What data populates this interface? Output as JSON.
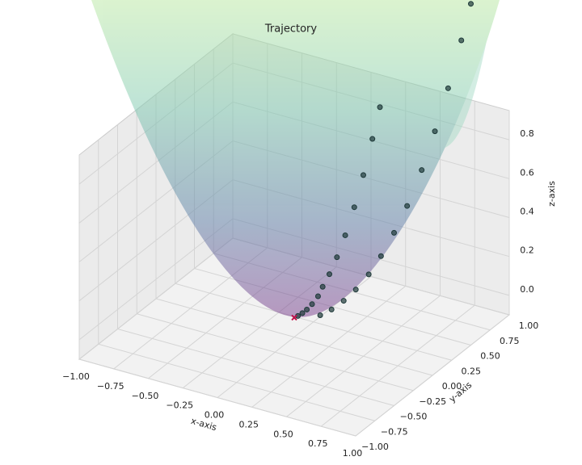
{
  "chart_data": {
    "type": "scatter3d",
    "title": "Trajectory",
    "x_label": "x-axis",
    "y_label": "y-axis",
    "z_label": "z-axis",
    "xlim": [
      -1,
      1
    ],
    "ylim": [
      -1,
      1
    ],
    "zlim": [
      -0.1,
      0.95
    ],
    "xticks": [
      {
        "value": -1,
        "label": "−1.00"
      },
      {
        "value": -0.75,
        "label": "−0.75"
      },
      {
        "value": -0.5,
        "label": "−0.50"
      },
      {
        "value": -0.25,
        "label": "−0.25"
      },
      {
        "value": 0,
        "label": "0.00"
      },
      {
        "value": 0.25,
        "label": "0.25"
      },
      {
        "value": 0.5,
        "label": "0.50"
      },
      {
        "value": 0.75,
        "label": "0.75"
      },
      {
        "value": 1,
        "label": "1.00"
      }
    ],
    "yticks": [
      {
        "value": -1,
        "label": "−1.00"
      },
      {
        "value": -0.75,
        "label": "−0.75"
      },
      {
        "value": -0.5,
        "label": "−0.50"
      },
      {
        "value": -0.25,
        "label": "−0.25"
      },
      {
        "value": 0,
        "label": "0.00"
      },
      {
        "value": 0.25,
        "label": "0.25"
      },
      {
        "value": 0.5,
        "label": "0.50"
      },
      {
        "value": 0.75,
        "label": "0.75"
      },
      {
        "value": 1,
        "label": "1.00"
      }
    ],
    "zticks": [
      {
        "value": 0,
        "label": "0.0"
      },
      0.2,
      0.4,
      0.6,
      0.8
    ],
    "grid": true,
    "series": [
      {
        "color": "#1f3a3a",
        "x": [
          0.75,
          0.12,
          0.72,
          0.11,
          0.68,
          0.1,
          0.64,
          0.09,
          0.6,
          0.08,
          0.55,
          0.07,
          0.5,
          0.06,
          0.45,
          0.05,
          0.4,
          0.05,
          0.34,
          0.04,
          0.28,
          0.03,
          0.22,
          0.02,
          0.16,
          0.01
        ],
        "y": [
          0.95,
          0.9,
          0.88,
          0.82,
          0.78,
          0.72,
          0.68,
          0.62,
          0.58,
          0.52,
          0.48,
          0.43,
          0.4,
          0.35,
          0.32,
          0.28,
          0.25,
          0.22,
          0.19,
          0.16,
          0.14,
          0.11,
          0.09,
          0.07,
          0.05,
          0.03
        ],
        "z": [
          1.465,
          0.825,
          1.293,
          0.685,
          1.07,
          0.528,
          0.872,
          0.392,
          0.696,
          0.277,
          0.533,
          0.19,
          0.41,
          0.126,
          0.305,
          0.081,
          0.223,
          0.051,
          0.152,
          0.027,
          0.098,
          0.013,
          0.057,
          0.005,
          0.028,
          0.001
        ]
      }
    ],
    "minimum": {
      "x": 0,
      "y": 0,
      "z": 0,
      "color": "#c0104a"
    }
  }
}
